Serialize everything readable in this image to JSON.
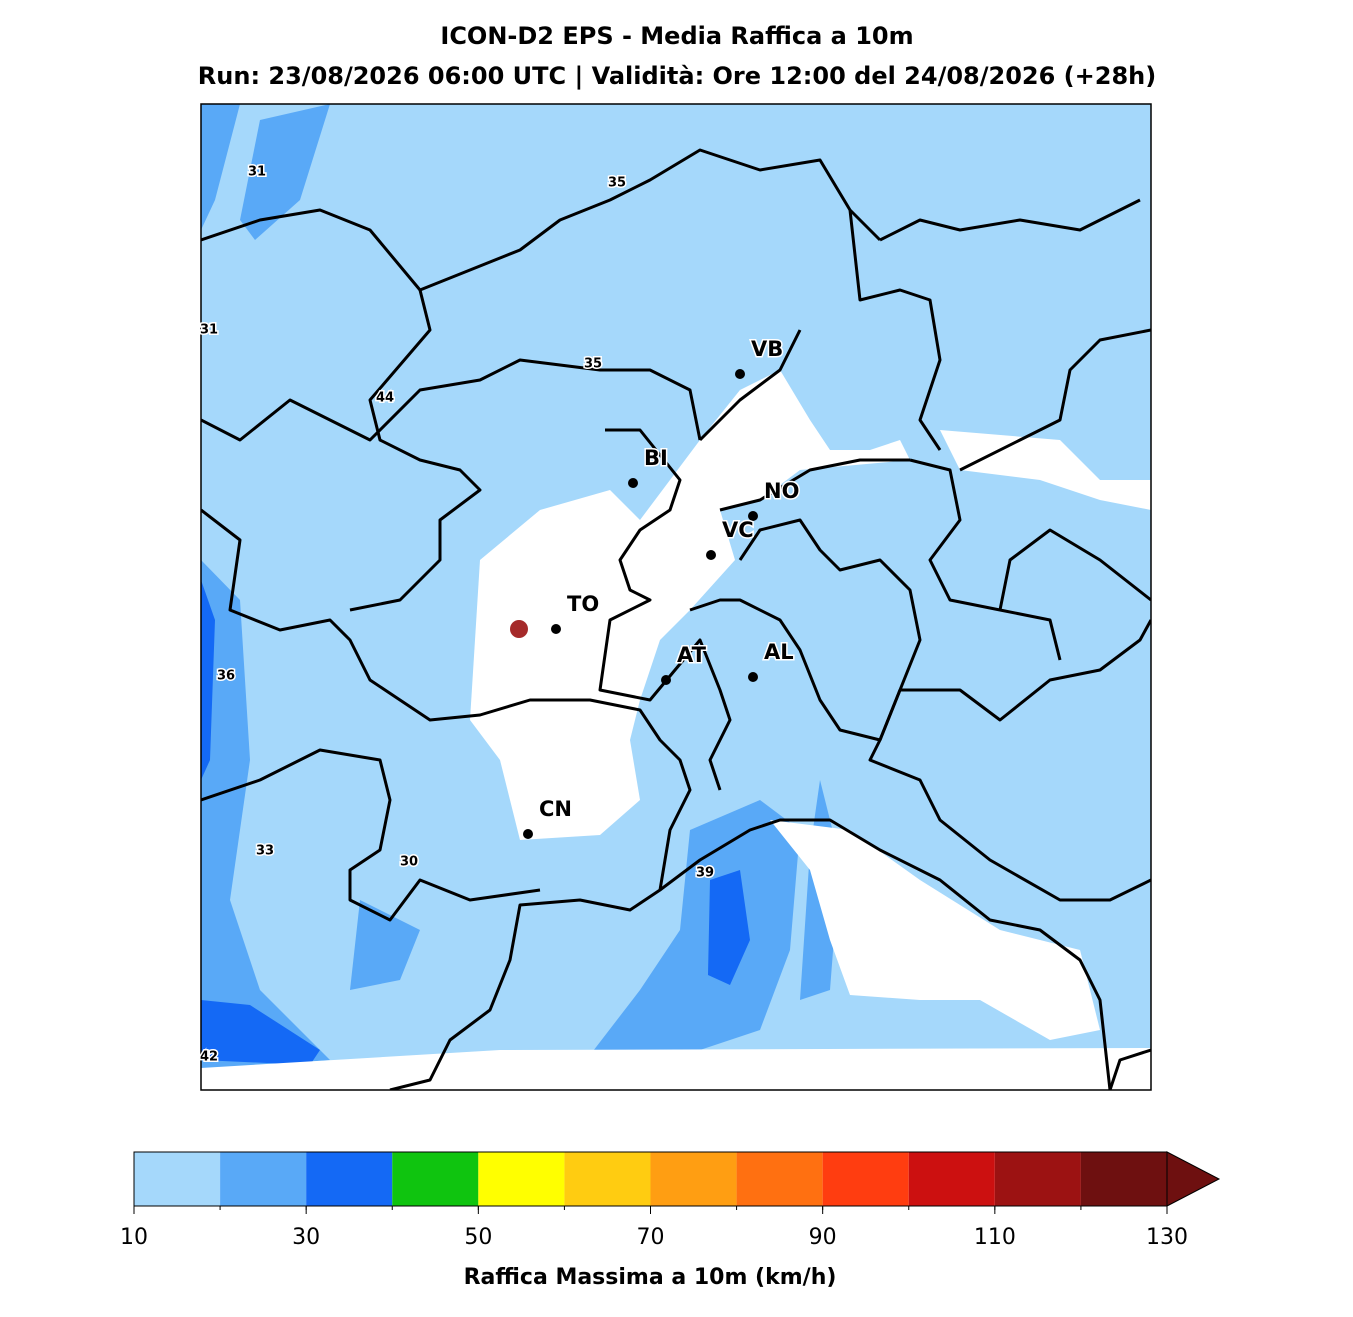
{
  "header": {
    "title": "ICON-D2 EPS - Media Raffica a 10m",
    "subtitle": "Run: 23/08/2026 06:00 UTC | Validità: Ore 12:00 del 24/08/2026 (+28h)"
  },
  "map": {
    "cities": [
      "VB",
      "BI",
      "NO",
      "VC",
      "TO",
      "AT",
      "AL",
      "CN"
    ],
    "contour_labels": [
      31,
      35,
      31,
      35,
      44,
      36,
      33,
      30,
      39,
      42
    ]
  },
  "colorbar": {
    "label": "Raffica Massima a 10m (km/h)",
    "levels": [
      10,
      20,
      30,
      40,
      50,
      60,
      70,
      80,
      90,
      100,
      110,
      120,
      130
    ],
    "colors": [
      "#a5d8fb",
      "#59a9f7",
      "#1469f5",
      "#0fc40f",
      "#ffff00",
      "#ffcc11",
      "#ff9e12",
      "#ff7011",
      "#ff3d10",
      "#cc1010",
      "#9c1212",
      "#6e1010"
    ],
    "ticks": [
      10,
      30,
      50,
      70,
      90,
      110,
      130
    ]
  }
}
